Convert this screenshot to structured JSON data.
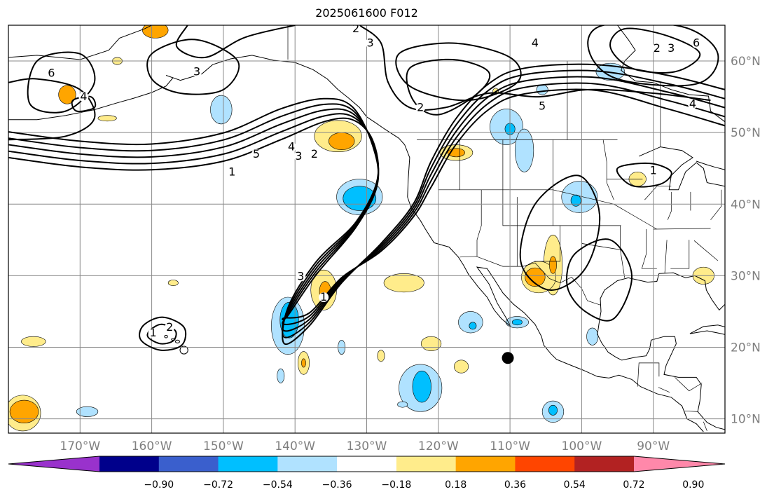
{
  "title": "2025061600 F012",
  "map": {
    "lon_range": [
      -180,
      -80
    ],
    "lat_range": [
      8,
      65
    ],
    "grid": true,
    "lat_ticks": [
      {
        "lat": 60,
        "label": "60°N"
      },
      {
        "lat": 50,
        "label": "50°N"
      },
      {
        "lat": 40,
        "label": "40°N"
      },
      {
        "lat": 30,
        "label": "30°N"
      },
      {
        "lat": 20,
        "label": "20°N"
      },
      {
        "lat": 10,
        "label": "10°N"
      }
    ],
    "lon_ticks": [
      {
        "lon": -170,
        "label": "170°W"
      },
      {
        "lon": -160,
        "label": "160°W"
      },
      {
        "lon": -150,
        "label": "150°W"
      },
      {
        "lon": -140,
        "label": "140°W"
      },
      {
        "lon": -130,
        "label": "130°W"
      },
      {
        "lon": -120,
        "label": "120°W"
      },
      {
        "lon": -110,
        "label": "110°W"
      },
      {
        "lon": -100,
        "label": "100°W"
      },
      {
        "lon": -90,
        "label": "90°W"
      }
    ],
    "marker": {
      "lon": -110.3,
      "lat": 18.5,
      "color": "#000000"
    },
    "contour_labels": [
      {
        "text": "1",
        "lon": -159.8,
        "lat": 21.5
      },
      {
        "text": "2",
        "lon": -157.5,
        "lat": 22.3
      },
      {
        "text": "3",
        "lon": -153.7,
        "lat": 58.0
      },
      {
        "text": "4",
        "lon": -169.5,
        "lat": 54.5
      },
      {
        "text": "6",
        "lon": -174.0,
        "lat": 57.8
      },
      {
        "text": "1",
        "lon": -148.8,
        "lat": 44.0
      },
      {
        "text": "5",
        "lon": -145.4,
        "lat": 46.5
      },
      {
        "text": "3",
        "lon": -139.5,
        "lat": 46.2
      },
      {
        "text": "2",
        "lon": -137.3,
        "lat": 46.5
      },
      {
        "text": "4",
        "lon": -140.5,
        "lat": 47.5
      },
      {
        "text": "3",
        "lon": -139.2,
        "lat": 29.4
      },
      {
        "text": "1",
        "lon": -136.0,
        "lat": 26.5
      },
      {
        "text": "2",
        "lon": -131.5,
        "lat": 64.0
      },
      {
        "text": "3",
        "lon": -129.5,
        "lat": 62.0
      },
      {
        "text": "2",
        "lon": -122.5,
        "lat": 53.0
      },
      {
        "text": "4",
        "lon": -106.5,
        "lat": 62.0
      },
      {
        "text": "5",
        "lon": -105.5,
        "lat": 53.2
      },
      {
        "text": "2",
        "lon": -89.5,
        "lat": 61.3
      },
      {
        "text": "3",
        "lon": -87.5,
        "lat": 61.3
      },
      {
        "text": "6",
        "lon": -84.0,
        "lat": 62.0
      },
      {
        "text": "4",
        "lon": -84.5,
        "lat": 53.5
      },
      {
        "text": "1",
        "lon": -90.0,
        "lat": 44.2
      }
    ],
    "anomaly_blobs": [
      {
        "lon": -159.5,
        "lat": 64.3,
        "rx": 1.8,
        "ry": 1.1,
        "level": 0.36
      },
      {
        "lon": -164.8,
        "lat": 60.0,
        "rx": 0.7,
        "ry": 0.5,
        "level": 0.18
      },
      {
        "lon": -171.8,
        "lat": 55.3,
        "rx": 1.2,
        "ry": 1.3,
        "level": 0.36
      },
      {
        "lon": -166.2,
        "lat": 52.0,
        "rx": 1.3,
        "ry": 0.4,
        "level": 0.18
      },
      {
        "lon": -150.3,
        "lat": 53.2,
        "rx": 1.5,
        "ry": 2.0,
        "level": -0.18
      },
      {
        "lon": -134.0,
        "lat": 49.5,
        "rx": 3.3,
        "ry": 2.2,
        "level": 0.18
      },
      {
        "lon": -133.5,
        "lat": 48.8,
        "rx": 1.8,
        "ry": 1.2,
        "level": 0.36
      },
      {
        "lon": -131.0,
        "lat": 41.0,
        "rx": 3.2,
        "ry": 2.5,
        "level": -0.18
      },
      {
        "lon": -131.0,
        "lat": 40.8,
        "rx": 2.3,
        "ry": 1.7,
        "level": -0.36
      },
      {
        "lon": -117.5,
        "lat": 47.2,
        "rx": 2.3,
        "ry": 1.1,
        "level": 0.18
      },
      {
        "lon": -117.5,
        "lat": 47.2,
        "rx": 1.2,
        "ry": 0.6,
        "level": 0.36
      },
      {
        "lon": -110.5,
        "lat": 50.8,
        "rx": 2.3,
        "ry": 2.5,
        "level": -0.18
      },
      {
        "lon": -108.0,
        "lat": 47.5,
        "rx": 1.3,
        "ry": 3.0,
        "level": -0.18
      },
      {
        "lon": -110.0,
        "lat": 50.5,
        "rx": 0.7,
        "ry": 0.8,
        "level": -0.36
      },
      {
        "lon": -105.5,
        "lat": 56.0,
        "rx": 0.8,
        "ry": 0.7,
        "level": -0.18
      },
      {
        "lon": -96.0,
        "lat": 58.5,
        "rx": 2.0,
        "ry": 1.2,
        "level": -0.18
      },
      {
        "lon": -100.3,
        "lat": 41.0,
        "rx": 2.5,
        "ry": 2.2,
        "level": -0.18
      },
      {
        "lon": -100.8,
        "lat": 40.5,
        "rx": 0.7,
        "ry": 0.8,
        "level": -0.36
      },
      {
        "lon": -92.2,
        "lat": 43.5,
        "rx": 1.2,
        "ry": 1.0,
        "level": 0.18
      },
      {
        "lon": -104.0,
        "lat": 31.5,
        "rx": 1.3,
        "ry": 4.2,
        "level": 0.18
      },
      {
        "lon": -106.0,
        "lat": 29.8,
        "rx": 2.4,
        "ry": 2.2,
        "level": 0.18
      },
      {
        "lon": -106.5,
        "lat": 29.8,
        "rx": 1.4,
        "ry": 1.3,
        "level": 0.36
      },
      {
        "lon": -104.0,
        "lat": 31.5,
        "rx": 0.5,
        "ry": 1.2,
        "level": 0.36
      },
      {
        "lon": -83.0,
        "lat": 30.0,
        "rx": 1.5,
        "ry": 1.2,
        "level": 0.18
      },
      {
        "lon": -124.8,
        "lat": 29.0,
        "rx": 2.8,
        "ry": 1.3,
        "level": 0.18
      },
      {
        "lon": -141.0,
        "lat": 23.0,
        "rx": 2.3,
        "ry": 4.0,
        "level": -0.18
      },
      {
        "lon": -140.8,
        "lat": 23.8,
        "rx": 1.3,
        "ry": 2.5,
        "level": -0.36
      },
      {
        "lon": -136.0,
        "lat": 28.0,
        "rx": 1.8,
        "ry": 2.8,
        "level": 0.18
      },
      {
        "lon": -135.8,
        "lat": 27.8,
        "rx": 0.8,
        "ry": 1.4,
        "level": 0.36
      },
      {
        "lon": -157.0,
        "lat": 29.0,
        "rx": 0.7,
        "ry": 0.4,
        "level": 0.18
      },
      {
        "lon": -176.5,
        "lat": 20.8,
        "rx": 1.7,
        "ry": 0.7,
        "level": 0.18
      },
      {
        "lon": -178.0,
        "lat": 10.8,
        "rx": 2.5,
        "ry": 2.5,
        "level": 0.18
      },
      {
        "lon": -177.8,
        "lat": 11.0,
        "rx": 2.0,
        "ry": 1.6,
        "level": 0.36
      },
      {
        "lon": -169.0,
        "lat": 11.0,
        "rx": 1.5,
        "ry": 0.7,
        "level": -0.18
      },
      {
        "lon": -142.0,
        "lat": 16.0,
        "rx": 0.5,
        "ry": 1.0,
        "level": -0.18
      },
      {
        "lon": -133.5,
        "lat": 20.0,
        "rx": 0.5,
        "ry": 1.0,
        "level": -0.18
      },
      {
        "lon": -128.0,
        "lat": 18.8,
        "rx": 0.5,
        "ry": 0.8,
        "level": 0.18
      },
      {
        "lon": -138.8,
        "lat": 17.8,
        "rx": 0.8,
        "ry": 1.6,
        "level": 0.18
      },
      {
        "lon": -138.8,
        "lat": 17.8,
        "rx": 0.3,
        "ry": 0.6,
        "level": 0.36
      },
      {
        "lon": -121.0,
        "lat": 20.5,
        "rx": 1.4,
        "ry": 1.0,
        "level": 0.18
      },
      {
        "lon": -115.5,
        "lat": 23.5,
        "rx": 1.7,
        "ry": 1.5,
        "level": -0.18
      },
      {
        "lon": -115.2,
        "lat": 23.0,
        "rx": 0.5,
        "ry": 0.5,
        "level": -0.36
      },
      {
        "lon": -109.0,
        "lat": 23.5,
        "rx": 1.6,
        "ry": 0.8,
        "level": -0.18
      },
      {
        "lon": -109.0,
        "lat": 23.5,
        "rx": 0.7,
        "ry": 0.4,
        "level": -0.36
      },
      {
        "lon": -116.8,
        "lat": 17.3,
        "rx": 1.0,
        "ry": 0.9,
        "level": 0.18
      },
      {
        "lon": -122.5,
        "lat": 14.3,
        "rx": 3.0,
        "ry": 3.3,
        "level": -0.18
      },
      {
        "lon": -122.3,
        "lat": 14.5,
        "rx": 1.3,
        "ry": 2.2,
        "level": -0.36
      },
      {
        "lon": -104.0,
        "lat": 11.0,
        "rx": 1.5,
        "ry": 1.5,
        "level": -0.18
      },
      {
        "lon": -104.0,
        "lat": 11.2,
        "rx": 0.6,
        "ry": 0.7,
        "level": -0.36
      },
      {
        "lon": -98.5,
        "lat": 21.5,
        "rx": 0.8,
        "ry": 1.2,
        "level": -0.18
      },
      {
        "lon": -125.0,
        "lat": 12.0,
        "rx": 0.7,
        "ry": 0.4,
        "level": -0.18
      },
      {
        "lon": -112.0,
        "lat": 55.8,
        "rx": 0.4,
        "ry": 0.4,
        "level": 0.18
      }
    ]
  },
  "colorbar": {
    "levels": [
      -0.9,
      -0.72,
      -0.54,
      -0.36,
      -0.18,
      0.18,
      0.36,
      0.54,
      0.72,
      0.9
    ],
    "colors": [
      "#9932cc",
      "#00008b",
      "#3a5fcd",
      "#00bfff",
      "#b0e2ff",
      "#ffffff",
      "#ffec8b",
      "#ffa500",
      "#ff4500",
      "#b22222",
      "#ff88aa"
    ],
    "tick_labels": [
      "−0.90",
      "−0.72",
      "−0.54",
      "−0.36",
      "−0.18",
      "0.18",
      "0.36",
      "0.54",
      "0.72",
      "0.90"
    ],
    "extend": "both"
  }
}
